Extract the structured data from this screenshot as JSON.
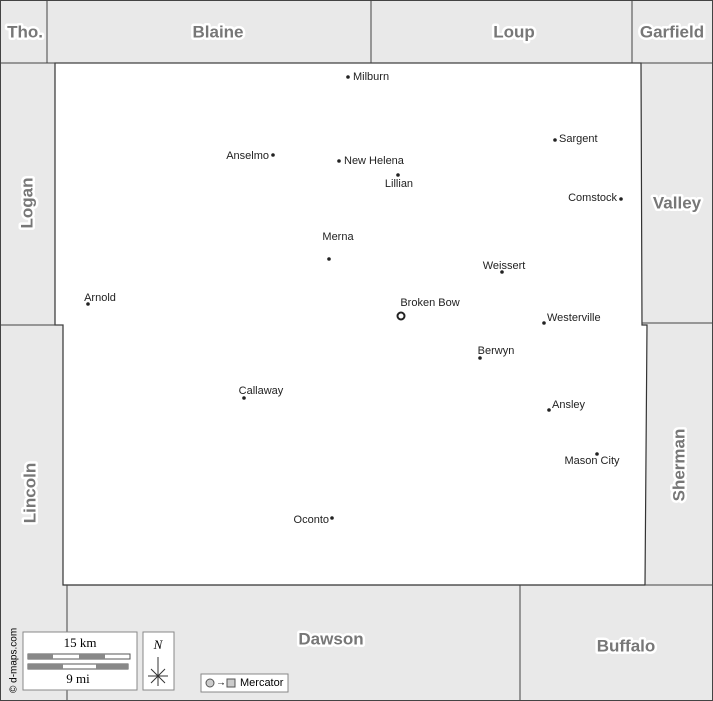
{
  "neighbors": [
    "Tho.",
    "Blaine",
    "Loup",
    "Garfield",
    "Logan",
    "Valley",
    "Lincoln",
    "Sherman",
    "Dawson",
    "Buffalo"
  ],
  "towns": [
    "Milburn",
    "Anselmo",
    "New Helena",
    "Lillian",
    "Sargent",
    "Comstock",
    "Merna",
    "Weissert",
    "Arnold",
    "Broken Bow",
    "Westerville",
    "Berwyn",
    "Callaway",
    "Ansley",
    "Mason City",
    "Oconto"
  ],
  "scale": {
    "km": "15 km",
    "mi": "9 mi"
  },
  "compass": "N",
  "projection": "Mercator",
  "credit": "© d-maps.com"
}
